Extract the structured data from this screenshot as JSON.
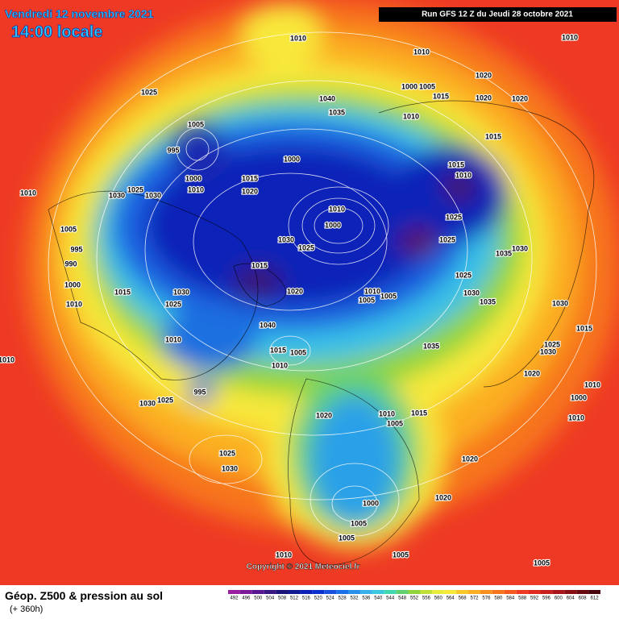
{
  "header": {
    "title": "Vendredi 12 novembre 2021",
    "time": "14:00 locale",
    "run": "Run GFS 12 Z du Jeudi 28 octobre 2021"
  },
  "map": {
    "copyright": "Copyright © 2021 Meteociel.fr",
    "isobar_labels": [
      "1010",
      "1010",
      "1010",
      "1025",
      "1040",
      "1035",
      "1005",
      "995",
      "1000",
      "1010",
      "1030",
      "1025",
      "1030",
      "1010",
      "1005",
      "995",
      "990",
      "1000",
      "1010",
      "1015",
      "1030",
      "1025",
      "1010",
      "1015",
      "1020",
      "1000",
      "1030",
      "1025",
      "1010",
      "1000",
      "1015",
      "1020",
      "1040",
      "1015",
      "1010",
      "1005",
      "995",
      "1030",
      "1025",
      "1020",
      "1010",
      "1005",
      "1015",
      "1025",
      "1030",
      "1000",
      "1005",
      "1005",
      "1010",
      "1005",
      "1020",
      "1020",
      "1005",
      "1010",
      "1000",
      "1005",
      "1015",
      "1020",
      "1020",
      "1020",
      "1015",
      "1015",
      "1010",
      "1025",
      "1025",
      "1035",
      "1030",
      "1025",
      "1030",
      "1035",
      "1030",
      "1010",
      "1005",
      "1005",
      "1035",
      "1025",
      "1030",
      "1020",
      "1010",
      "1010",
      "1000",
      "1015",
      "1010"
    ]
  },
  "footer": {
    "title": "Géop. Z500 & pression au sol",
    "lead": "(+ 360h)"
  },
  "legend": {
    "values": [
      492,
      496,
      500,
      504,
      508,
      512,
      516,
      520,
      524,
      528,
      532,
      536,
      540,
      544,
      548,
      552,
      556,
      560,
      564,
      568,
      572,
      576,
      580,
      584,
      588,
      592,
      596,
      600,
      604,
      608,
      612
    ],
    "colors": [
      "#9a1ea0",
      "#7a1a98",
      "#5a1690",
      "#3a1680",
      "#1a1478",
      "#101a90",
      "#0a20b8",
      "#0a30d0",
      "#1a50e0",
      "#1a70e8",
      "#2a90ea",
      "#39b0ea",
      "#39c8e0",
      "#40d8b0",
      "#60d070",
      "#90d43c",
      "#c0e038",
      "#e8ec3a",
      "#f8e83a",
      "#f8c82a",
      "#fbae22",
      "#f89020",
      "#f7741e",
      "#f45a20",
      "#ee3a24",
      "#e02a20",
      "#c81e1c",
      "#a81418",
      "#880e14",
      "#680a10",
      "#48060c"
    ]
  }
}
